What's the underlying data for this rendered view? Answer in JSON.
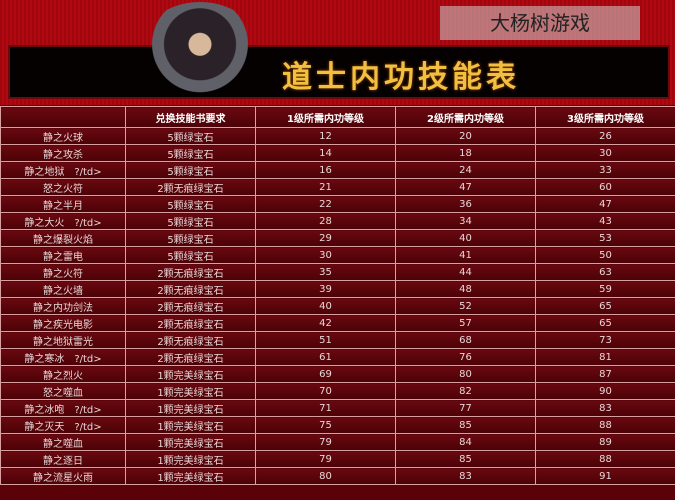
{
  "banner": {
    "title": "道士内功技能表"
  },
  "table": {
    "headers": [
      "",
      "兑换技能书要求",
      "1级所需内功等级",
      "2级所需内功等级",
      "3级所需内功等级"
    ],
    "rows": [
      [
        "静之火球",
        "5颗绿宝石",
        "12",
        "20",
        "26"
      ],
      [
        "静之攻杀",
        "5颗绿宝石",
        "14",
        "18",
        "30"
      ],
      [
        "静之地狱　?/td>",
        "5颗绿宝石",
        "16",
        "24",
        "33"
      ],
      [
        "怒之火符",
        "2颗无痕绿宝石",
        "21",
        "47",
        "60"
      ],
      [
        "静之半月",
        "5颗绿宝石",
        "22",
        "36",
        "47"
      ],
      [
        "静之大火　?/td>",
        "5颗绿宝石",
        "28",
        "34",
        "43"
      ],
      [
        "静之爆裂火焰",
        "5颗绿宝石",
        "29",
        "40",
        "53"
      ],
      [
        "静之雷电",
        "5颗绿宝石",
        "30",
        "41",
        "50"
      ],
      [
        "静之火符",
        "2颗无痕绿宝石",
        "35",
        "44",
        "63"
      ],
      [
        "静之火墙",
        "2颗无痕绿宝石",
        "39",
        "48",
        "59"
      ],
      [
        "静之内功剑法",
        "2颗无痕绿宝石",
        "40",
        "52",
        "65"
      ],
      [
        "静之疾光电影",
        "2颗无痕绿宝石",
        "42",
        "57",
        "65"
      ],
      [
        "静之地狱雷光",
        "2颗无痕绿宝石",
        "51",
        "68",
        "73"
      ],
      [
        "静之寒冰　?/td>",
        "2颗无痕绿宝石",
        "61",
        "76",
        "81"
      ],
      [
        "静之烈火",
        "1颗完美绿宝石",
        "69",
        "80",
        "87"
      ],
      [
        "怒之噬血",
        "1颗完美绿宝石",
        "70",
        "82",
        "90"
      ],
      [
        "静之冰咆　?/td>",
        "1颗完美绿宝石",
        "71",
        "77",
        "83"
      ],
      [
        "静之灭天　?/td>",
        "1颗完美绿宝石",
        "75",
        "85",
        "88"
      ],
      [
        "静之噬血",
        "1颗完美绿宝石",
        "79",
        "84",
        "89"
      ],
      [
        "静之逐日",
        "1颗完美绿宝石",
        "79",
        "85",
        "88"
      ],
      [
        "静之流星火雨",
        "1颗完美绿宝石",
        "80",
        "83",
        "91"
      ]
    ]
  },
  "watermark": "大杨树游戏"
}
